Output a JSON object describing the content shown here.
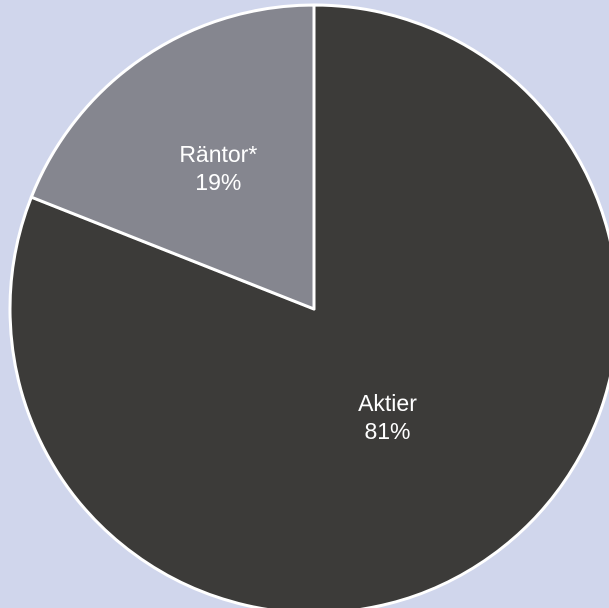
{
  "chart_data": {
    "type": "pie",
    "title": "",
    "start": "12 o'clock",
    "direction": "clockwise",
    "slices": [
      {
        "label": "Aktier",
        "percent_label": "81%",
        "value": 81,
        "color": "#3c3b39"
      },
      {
        "label": "Räntor*",
        "percent_label": "19%",
        "value": 19,
        "color": "#85868f"
      }
    ],
    "slice_border_color": "#ffffff",
    "legend": "none",
    "data_labels": "inside"
  },
  "colors": {
    "background": "#d0d6ec"
  }
}
